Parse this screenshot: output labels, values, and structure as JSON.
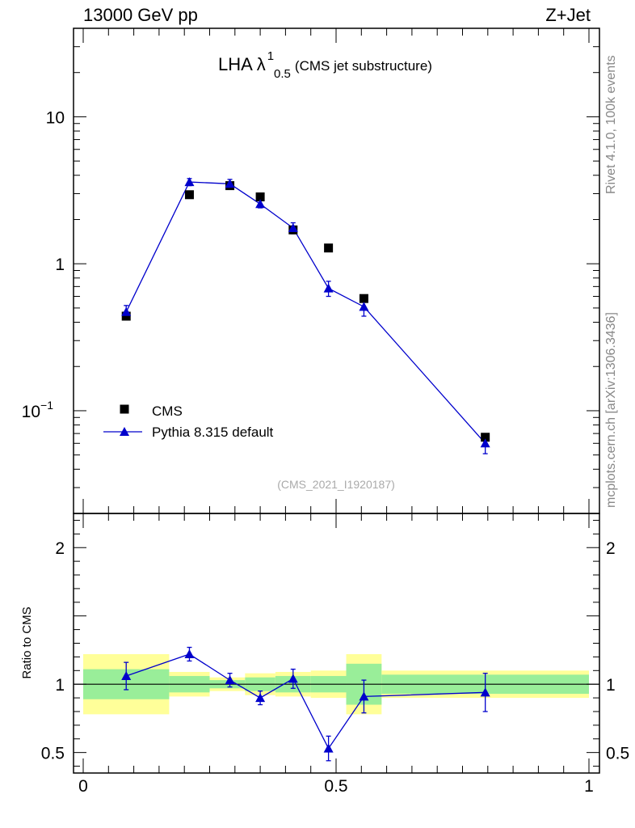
{
  "header": {
    "left": "13000 GeV pp",
    "right": "Z+Jet"
  },
  "side_labels": {
    "rivet": "Rivet 4.1.0,  100k events",
    "mcplots": "mcplots.cern.ch [arXiv:1306.3436]"
  },
  "chart_data": {
    "type": "scatter",
    "title": {
      "main": "LHA λ",
      "superscript": "1",
      "subscript": "0.5",
      "suffix": "(CMS jet substructure)"
    },
    "analysis_id": "(CMS_2021_I1920187)",
    "x_axis": {
      "range": [
        0,
        1
      ],
      "ticks": [
        0,
        0.5,
        1
      ],
      "tick_labels": [
        "0",
        "0.5",
        "1"
      ]
    },
    "main_panel": {
      "y_scale": "log",
      "y_range": [
        0.02,
        40
      ],
      "y_ticks": [
        {
          "value": 0.1,
          "label_base": "10",
          "label_exp": "−1"
        },
        {
          "value": 1,
          "label_base": "1",
          "label_exp": ""
        },
        {
          "value": 10,
          "label_base": "10",
          "label_exp": ""
        }
      ],
      "legend_position": "bottom-left",
      "series": [
        {
          "name": "CMS",
          "marker": "square",
          "color": "#000000",
          "x": [
            0.085,
            0.21,
            0.29,
            0.35,
            0.415,
            0.485,
            0.555,
            0.795
          ],
          "x_low": [
            0.0,
            0.17,
            0.25,
            0.32,
            0.38,
            0.45,
            0.52,
            0.59
          ],
          "x_high": [
            0.17,
            0.25,
            0.32,
            0.38,
            0.45,
            0.52,
            0.59,
            1.0
          ],
          "y": [
            0.44,
            2.95,
            3.4,
            2.85,
            1.7,
            1.28,
            0.58,
            0.066
          ],
          "stat_band": [
            0.11,
            0.06,
            0.03,
            0.05,
            0.06,
            0.06,
            0.15,
            0.07
          ],
          "total_band": [
            0.22,
            0.09,
            0.05,
            0.08,
            0.09,
            0.1,
            0.22,
            0.1
          ]
        },
        {
          "name": "Pythia 8.315 default",
          "marker": "triangle",
          "color": "#0000cc",
          "x": [
            0.085,
            0.21,
            0.29,
            0.35,
            0.415,
            0.485,
            0.555,
            0.795
          ],
          "y": [
            0.47,
            3.6,
            3.5,
            2.55,
            1.75,
            0.68,
            0.51,
            0.06
          ],
          "y_err": [
            0.05,
            0.2,
            0.25,
            0.15,
            0.15,
            0.08,
            0.07,
            0.009
          ]
        }
      ]
    },
    "ratio_panel": {
      "ylabel": "Ratio to CMS",
      "y_range": [
        0.35,
        2.25
      ],
      "y_ticks": [
        0.5,
        1,
        2
      ],
      "y_tick_labels": [
        "0.5",
        "1",
        "2"
      ],
      "reference": 1,
      "mc_ratio": {
        "x": [
          0.085,
          0.21,
          0.29,
          0.35,
          0.415,
          0.485,
          0.555,
          0.795
        ],
        "y": [
          1.06,
          1.22,
          1.03,
          0.9,
          1.04,
          0.53,
          0.91,
          0.94
        ],
        "y_err": [
          0.1,
          0.05,
          0.05,
          0.05,
          0.07,
          0.09,
          0.12,
          0.14
        ]
      }
    }
  }
}
